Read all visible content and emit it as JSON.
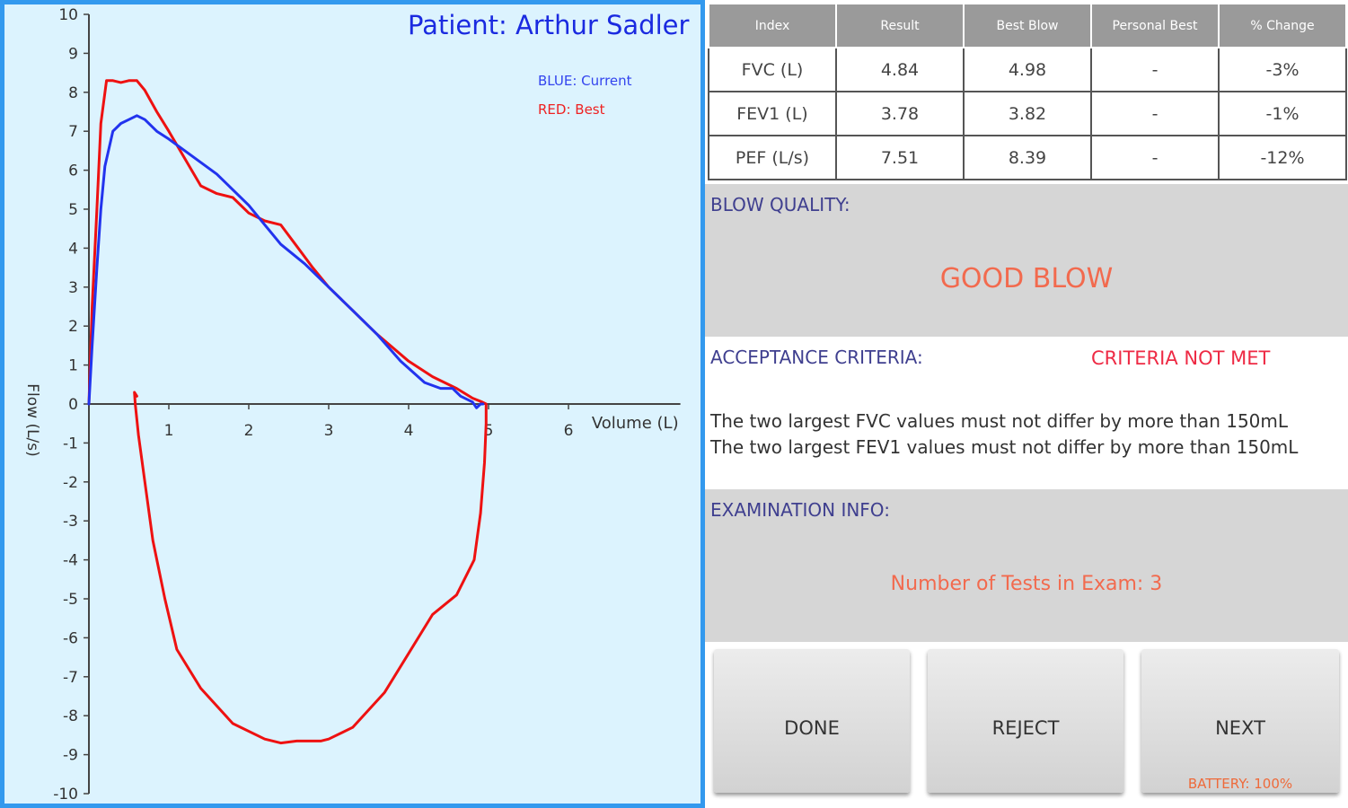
{
  "patient_label": "Patient: Arthur Sadler",
  "legend": {
    "current": "BLUE: Current",
    "best": "RED: Best",
    "current_color": "#2233ee",
    "best_color": "#ee1111"
  },
  "chart_data": {
    "type": "line",
    "xlabel": "Volume (L)",
    "ylabel": "Flow (L/s)",
    "xlim": [
      0,
      7.4
    ],
    "ylim": [
      -10,
      10
    ],
    "x_ticks": [
      "1",
      "2",
      "3",
      "4",
      "5",
      "6"
    ],
    "y_ticks": [
      "10",
      "9",
      "8",
      "7",
      "6",
      "5",
      "4",
      "3",
      "2",
      "1",
      "0",
      "-1",
      "-2",
      "-3",
      "-4",
      "-5",
      "-6",
      "-7",
      "-8",
      "-9",
      "-10"
    ],
    "series": [
      {
        "name": "RED: Best",
        "color": "#ee1111",
        "x": [
          0,
          0.04,
          0.1,
          0.15,
          0.22,
          0.3,
          0.4,
          0.5,
          0.6,
          0.7,
          0.85,
          1,
          1.2,
          1.4,
          1.6,
          1.8,
          2,
          2.2,
          2.4,
          2.6,
          2.8,
          3,
          3.3,
          3.6,
          4,
          4.3,
          4.6,
          4.8,
          4.92,
          4.97,
          4.97,
          4.95,
          4.9,
          4.82,
          4.6,
          4.3,
          4.0,
          3.7,
          3.3,
          3.0,
          2.9,
          2.6,
          2.4,
          2.2,
          1.8,
          1.4,
          1.1,
          0.95,
          0.8,
          0.7,
          0.62,
          0.58,
          0.57,
          0.6
        ],
        "y": [
          0,
          2.5,
          5,
          7.2,
          8.3,
          8.3,
          8.25,
          8.3,
          8.3,
          8.05,
          7.5,
          7.0,
          6.3,
          5.6,
          5.4,
          5.3,
          4.9,
          4.7,
          4.6,
          4.05,
          3.5,
          3.0,
          2.4,
          1.8,
          1.1,
          0.7,
          0.4,
          0.15,
          0.05,
          0,
          -0.5,
          -1.5,
          -2.8,
          -4.0,
          -4.9,
          -5.4,
          -6.4,
          -7.4,
          -8.3,
          -8.6,
          -8.65,
          -8.65,
          -8.7,
          -8.6,
          -8.2,
          -7.3,
          -6.3,
          -5.0,
          -3.5,
          -2.0,
          -0.8,
          0,
          0.3,
          0.2
        ]
      },
      {
        "name": "BLUE: Current",
        "color": "#2233ee",
        "x": [
          0,
          0.04,
          0.1,
          0.15,
          0.2,
          0.3,
          0.4,
          0.5,
          0.6,
          0.7,
          0.85,
          1,
          1.2,
          1.4,
          1.6,
          1.8,
          2,
          2.2,
          2.4,
          2.7,
          3,
          3.3,
          3.6,
          3.9,
          4.2,
          4.4,
          4.55,
          4.65,
          4.8,
          4.85,
          4.9,
          4.93
        ],
        "y": [
          0,
          1.5,
          3.5,
          5.0,
          6.1,
          7.0,
          7.2,
          7.3,
          7.4,
          7.3,
          7.0,
          6.8,
          6.5,
          6.2,
          5.9,
          5.5,
          5.1,
          4.6,
          4.1,
          3.6,
          3.0,
          2.4,
          1.8,
          1.1,
          0.55,
          0.4,
          0.4,
          0.2,
          0.05,
          -0.1,
          0,
          0
        ]
      }
    ]
  },
  "table": {
    "headers": [
      "Index",
      "Result",
      "Best Blow",
      "Personal Best",
      "% Change"
    ],
    "rows": [
      [
        "FVC (L)",
        "4.84",
        "4.98",
        "-",
        "-3%"
      ],
      [
        "FEV1 (L)",
        "3.78",
        "3.82",
        "-",
        "-1%"
      ],
      [
        "PEF (L/s)",
        "7.51",
        "8.39",
        "-",
        "-12%"
      ]
    ]
  },
  "blow_quality": {
    "label": "BLOW QUALITY:",
    "value": "GOOD BLOW"
  },
  "acceptance": {
    "label": "ACCEPTANCE CRITERIA:",
    "status": "CRITERIA NOT MET",
    "messages": [
      "The two largest FVC values must not differ by more than 150mL",
      "The two largest FEV1 values must not differ by more than 150mL"
    ]
  },
  "exam": {
    "label": "EXAMINATION INFO:",
    "info": "Number of Tests in Exam: 3"
  },
  "buttons": {
    "done": "DONE",
    "reject": "REJECT",
    "next": "NEXT",
    "battery": "BATTERY: 100%"
  }
}
